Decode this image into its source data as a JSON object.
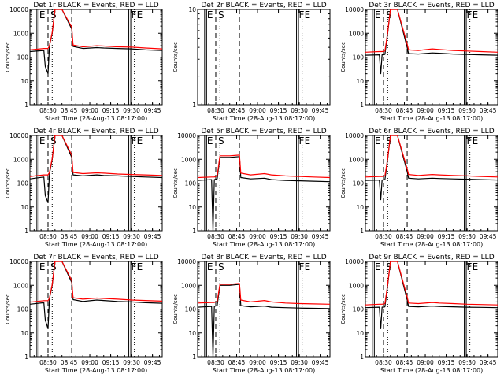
{
  "chart_data": {
    "type": "line",
    "legend": "BLACK = Events, RED = LLD",
    "ylabel": "Counts/sec",
    "xlabel": "Start Time (28-Aug-13 08:17:00)",
    "y_scale": "log",
    "ylim": [
      1,
      10000
    ],
    "y_ticks": [
      "1",
      "10",
      "100",
      "1000",
      "10000"
    ],
    "x_ticks": [
      "08:30",
      "08:45",
      "09:00",
      "09:15",
      "09:30",
      "09:45"
    ],
    "xlim": [
      "08:17",
      "09:52"
    ],
    "event_markers": [
      {
        "label": "E",
        "time": "08:22",
        "style": "solid"
      },
      {
        "label": "S",
        "time": "08:30",
        "style": "dashed"
      },
      {
        "label": "",
        "time": "08:33",
        "style": "dotted"
      },
      {
        "label": "",
        "time": "08:47",
        "style": "dashed"
      },
      {
        "label": "F",
        "time": "09:28",
        "style": "solid"
      },
      {
        "label": "E",
        "time": "09:32",
        "style": "dotted"
      }
    ],
    "panels": [
      {
        "title": "Det 1r BLACK = Events, RED = LLD",
        "profile": "high",
        "series": [
          {
            "name": "Events",
            "color": "#000000",
            "x": [
              "08:17",
              "08:27",
              "08:28",
              "08:30",
              "08:31",
              "08:33",
              "08:35",
              "08:40",
              "08:47",
              "08:48",
              "08:55",
              "09:05",
              "09:10",
              "09:20",
              "09:30",
              "09:40",
              "09:52"
            ],
            "y": [
              170,
              190,
              40,
              20,
              300,
              1000,
              10000,
              10000,
              1500,
              280,
              230,
              250,
              240,
              230,
              220,
              200,
              190
            ]
          },
          {
            "name": "LLD",
            "color": "#ff0000",
            "x": [
              "08:17",
              "08:27",
              "08:28",
              "08:30",
              "08:31",
              "08:33",
              "08:35",
              "08:40",
              "08:47",
              "08:48",
              "08:55",
              "09:05",
              "09:10",
              "09:20",
              "09:30",
              "09:40",
              "09:52"
            ],
            "y": [
              200,
              230,
              230,
              230,
              300,
              1100,
              10000,
              10000,
              1800,
              320,
              270,
              300,
              290,
              270,
              260,
              240,
              220
            ]
          }
        ]
      },
      {
        "title": "Det 2r BLACK = Events, RED = LLD",
        "profile": "empty",
        "ylim": [
          1,
          10
        ],
        "y_ticks": [
          "1",
          "10"
        ],
        "series": []
      },
      {
        "title": "Det 3r BLACK = Events, RED = LLD",
        "profile": "low",
        "series": [
          {
            "name": "Events",
            "color": "#000000",
            "x": [
              "08:17",
              "08:27",
              "08:28",
              "08:29",
              "08:31",
              "08:33",
              "08:35",
              "08:40",
              "08:47",
              "08:48",
              "08:55",
              "09:05",
              "09:10",
              "09:20",
              "09:30",
              "09:40",
              "09:52"
            ],
            "y": [
              120,
              125,
              20,
              125,
              130,
              1000,
              10000,
              10000,
              250,
              140,
              135,
              150,
              145,
              135,
              130,
              125,
              120
            ]
          },
          {
            "name": "LLD",
            "color": "#ff0000",
            "x": [
              "08:17",
              "08:27",
              "08:28",
              "08:29",
              "08:31",
              "08:33",
              "08:35",
              "08:40",
              "08:47",
              "08:48",
              "08:55",
              "09:05",
              "09:10",
              "09:20",
              "09:30",
              "09:40",
              "09:52"
            ],
            "y": [
              160,
              170,
              170,
              170,
              180,
              1100,
              10000,
              10000,
              350,
              200,
              190,
              220,
              210,
              190,
              180,
              170,
              160
            ]
          }
        ]
      },
      {
        "title": "Det 4r BLACK = Events, RED = LLD",
        "profile": "high",
        "series": [
          {
            "name": "Events",
            "color": "#000000",
            "x": [
              "08:17",
              "08:27",
              "08:28",
              "08:30",
              "08:31",
              "08:33",
              "08:35",
              "08:40",
              "08:47",
              "08:48",
              "08:55",
              "09:05",
              "09:10",
              "09:20",
              "09:30",
              "09:40",
              "09:52"
            ],
            "y": [
              150,
              180,
              30,
              15,
              250,
              1000,
              10000,
              10000,
              1200,
              220,
              200,
              220,
              210,
              200,
              190,
              180,
              170
            ]
          },
          {
            "name": "LLD",
            "color": "#ff0000",
            "x": [
              "08:17",
              "08:27",
              "08:28",
              "08:30",
              "08:31",
              "08:33",
              "08:35",
              "08:40",
              "08:47",
              "08:48",
              "08:55",
              "09:05",
              "09:10",
              "09:20",
              "09:30",
              "09:40",
              "09:52"
            ],
            "y": [
              190,
              220,
              220,
              220,
              280,
              1100,
              10000,
              10000,
              1500,
              280,
              250,
              270,
              260,
              240,
              230,
              220,
              210
            ]
          }
        ]
      },
      {
        "title": "Det 5r BLACK = Events, RED = LLD",
        "profile": "mid",
        "series": [
          {
            "name": "Events",
            "color": "#000000",
            "x": [
              "08:17",
              "08:27",
              "08:28",
              "08:29",
              "08:31",
              "08:33",
              "08:40",
              "08:47",
              "08:48",
              "08:55",
              "09:05",
              "09:10",
              "09:20",
              "09:30",
              "09:40",
              "09:52"
            ],
            "y": [
              130,
              140,
              1,
              140,
              150,
              1200,
              1200,
              1300,
              170,
              150,
              160,
              140,
              130,
              125,
              120,
              115
            ]
          },
          {
            "name": "LLD",
            "color": "#ff0000",
            "x": [
              "08:17",
              "08:27",
              "08:28",
              "08:29",
              "08:31",
              "08:33",
              "08:40",
              "08:47",
              "08:48",
              "08:55",
              "09:05",
              "09:10",
              "09:20",
              "09:30",
              "09:40",
              "09:52"
            ],
            "y": [
              170,
              180,
              180,
              180,
              200,
              1400,
              1400,
              1500,
              260,
              220,
              250,
              220,
              200,
              190,
              180,
              170
            ]
          }
        ]
      },
      {
        "title": "Det 6r BLACK = Events, RED = LLD",
        "profile": "low",
        "series": [
          {
            "name": "Events",
            "color": "#000000",
            "x": [
              "08:17",
              "08:27",
              "08:28",
              "08:29",
              "08:31",
              "08:33",
              "08:35",
              "08:40",
              "08:47",
              "08:48",
              "08:55",
              "09:05",
              "09:10",
              "09:20",
              "09:30",
              "09:40",
              "09:52"
            ],
            "y": [
              130,
              135,
              20,
              135,
              140,
              1000,
              10000,
              10000,
              300,
              160,
              150,
              160,
              155,
              150,
              145,
              140,
              135
            ]
          },
          {
            "name": "LLD",
            "color": "#ff0000",
            "x": [
              "08:17",
              "08:27",
              "08:28",
              "08:29",
              "08:31",
              "08:33",
              "08:35",
              "08:40",
              "08:47",
              "08:48",
              "08:55",
              "09:05",
              "09:10",
              "09:20",
              "09:30",
              "09:40",
              "09:52"
            ],
            "y": [
              180,
              190,
              190,
              190,
              200,
              1100,
              10000,
              10000,
              400,
              230,
              210,
              230,
              220,
              210,
              200,
              190,
              180
            ]
          }
        ]
      },
      {
        "title": "Det 7r BLACK = Events, RED = LLD",
        "profile": "high",
        "series": [
          {
            "name": "Events",
            "color": "#000000",
            "x": [
              "08:17",
              "08:27",
              "08:28",
              "08:30",
              "08:31",
              "08:33",
              "08:35",
              "08:40",
              "08:47",
              "08:48",
              "08:55",
              "09:05",
              "09:10",
              "09:20",
              "09:30",
              "09:40",
              "09:52"
            ],
            "y": [
              160,
              185,
              35,
              15,
              280,
              1000,
              10000,
              10000,
              1300,
              250,
              210,
              240,
              230,
              210,
              200,
              185,
              175
            ]
          },
          {
            "name": "LLD",
            "color": "#ff0000",
            "x": [
              "08:17",
              "08:27",
              "08:28",
              "08:30",
              "08:31",
              "08:33",
              "08:35",
              "08:40",
              "08:47",
              "08:48",
              "08:55",
              "09:05",
              "09:10",
              "09:20",
              "09:30",
              "09:40",
              "09:52"
            ],
            "y": [
              195,
              225,
              225,
              225,
              290,
              1100,
              10000,
              10000,
              1600,
              300,
              260,
              290,
              280,
              260,
              240,
              230,
              215
            ]
          }
        ]
      },
      {
        "title": "Det 8r BLACK = Events, RED = LLD",
        "profile": "mid",
        "series": [
          {
            "name": "Events",
            "color": "#000000",
            "x": [
              "08:17",
              "08:27",
              "08:28",
              "08:29",
              "08:31",
              "08:33",
              "08:40",
              "08:47",
              "08:48",
              "08:55",
              "09:05",
              "09:10",
              "09:20",
              "09:30",
              "09:40",
              "09:52"
            ],
            "y": [
              120,
              130,
              1,
              130,
              140,
              1000,
              1000,
              1100,
              140,
              125,
              135,
              120,
              115,
              110,
              108,
              105
            ]
          },
          {
            "name": "LLD",
            "color": "#ff0000",
            "x": [
              "08:17",
              "08:27",
              "08:28",
              "08:29",
              "08:31",
              "08:33",
              "08:40",
              "08:47",
              "08:48",
              "08:55",
              "09:05",
              "09:10",
              "09:20",
              "09:30",
              "09:40",
              "09:52"
            ],
            "y": [
              180,
              190,
              190,
              190,
              210,
              1100,
              1100,
              1200,
              240,
              200,
              230,
              200,
              180,
              170,
              165,
              160
            ]
          }
        ]
      },
      {
        "title": "Det 9r BLACK = Events, RED = LLD",
        "profile": "low",
        "series": [
          {
            "name": "Events",
            "color": "#000000",
            "x": [
              "08:17",
              "08:27",
              "08:28",
              "08:29",
              "08:31",
              "08:33",
              "08:35",
              "08:40",
              "08:47",
              "08:48",
              "08:55",
              "09:05",
              "09:10",
              "09:20",
              "09:30",
              "09:40",
              "09:52"
            ],
            "y": [
              115,
              120,
              15,
              120,
              125,
              1000,
              10000,
              10000,
              240,
              130,
              125,
              135,
              130,
              125,
              120,
              118,
              115
            ]
          },
          {
            "name": "LLD",
            "color": "#ff0000",
            "x": [
              "08:17",
              "08:27",
              "08:28",
              "08:29",
              "08:31",
              "08:33",
              "08:35",
              "08:40",
              "08:47",
              "08:48",
              "08:55",
              "09:05",
              "09:10",
              "09:20",
              "09:30",
              "09:40",
              "09:52"
            ],
            "y": [
              150,
              160,
              160,
              160,
              170,
              1100,
              10000,
              10000,
              320,
              180,
              170,
              190,
              180,
              170,
              160,
              155,
              150
            ]
          }
        ]
      }
    ]
  }
}
